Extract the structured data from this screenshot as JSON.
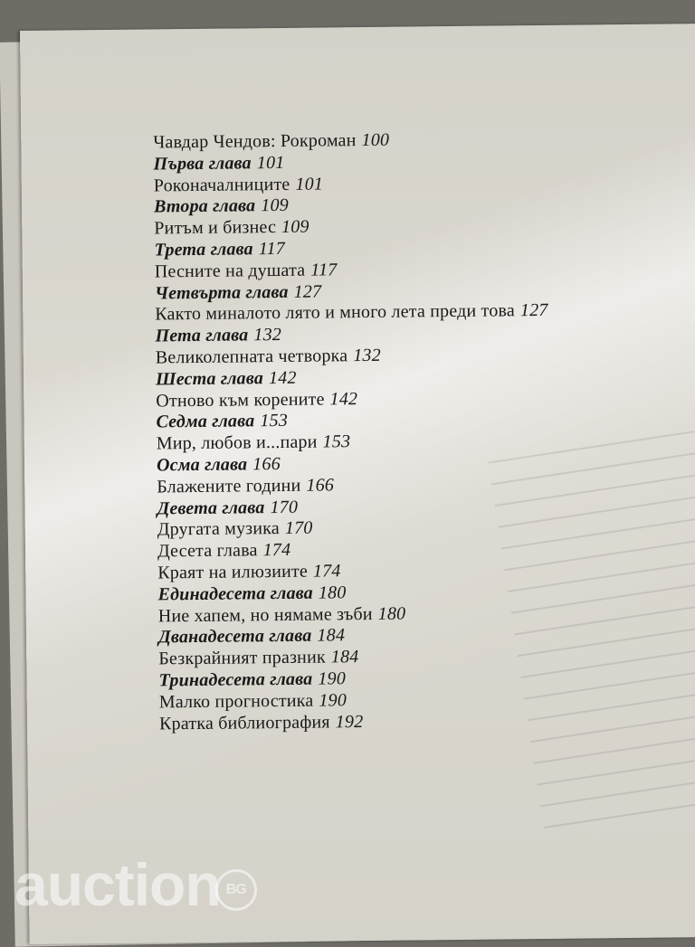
{
  "toc": [
    {
      "title": "Чавдар Чендов: Рокроман",
      "page": "100",
      "italic": false,
      "chapter": false
    },
    {
      "title": "Първа глава",
      "page": "101",
      "chapter": true
    },
    {
      "title": "Роконачалниците",
      "page": "101",
      "chapter": false
    },
    {
      "title": "Втора глава",
      "page": "109",
      "chapter": true
    },
    {
      "title": "Ритъм и бизнес",
      "page": "109",
      "chapter": false
    },
    {
      "title": "Трета глава",
      "page": "117",
      "chapter": true
    },
    {
      "title": "Песните на душата",
      "page": "117",
      "chapter": false
    },
    {
      "title": "Четвърта глава",
      "page": "127",
      "chapter": true
    },
    {
      "title": "Както миналото лято и много лета преди това",
      "page": "127",
      "chapter": false
    },
    {
      "title": "Пета глава",
      "page": "132",
      "chapter": true
    },
    {
      "title": "Великолепната четворка",
      "page": "132",
      "chapter": false
    },
    {
      "title": "Шеста глава",
      "page": "142",
      "chapter": true
    },
    {
      "title": "Отново към корените",
      "page": "142",
      "chapter": false
    },
    {
      "title": "Седма глава",
      "page": "153",
      "chapter": true
    },
    {
      "title": "Мир, любов и...пари",
      "page": "153",
      "chapter": false
    },
    {
      "title": "Осма глава",
      "page": "166",
      "chapter": true
    },
    {
      "title": "Блажените години",
      "page": "166",
      "chapter": false
    },
    {
      "title": "Девета глава",
      "page": "170",
      "chapter": true
    },
    {
      "title": "Другата музика",
      "page": "170",
      "chapter": false
    },
    {
      "title": "Десета глава",
      "page": "174",
      "chapter": false
    },
    {
      "title": "Краят на илюзиите",
      "page": "174",
      "chapter": false
    },
    {
      "title": "Единадесета глава",
      "page": "180",
      "chapter": true
    },
    {
      "title": "Ние хапем, но нямаме зъби",
      "page": "180",
      "chapter": false
    },
    {
      "title": "Дванадесета глава",
      "page": "184",
      "chapter": true
    },
    {
      "title": "Безкрайният празник",
      "page": "184",
      "chapter": false
    },
    {
      "title": "Тринадесета глава",
      "page": "190",
      "chapter": true
    },
    {
      "title": "Малко прогностика",
      "page": "190",
      "chapter": false
    },
    {
      "title": "Кратка библиография",
      "page": "192",
      "chapter": false
    }
  ],
  "watermark": {
    "text": "auction",
    "badge": "BG"
  }
}
